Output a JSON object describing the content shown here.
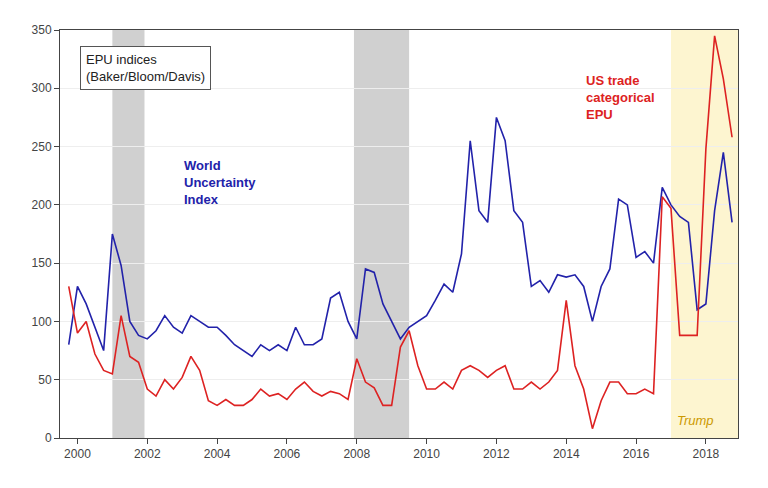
{
  "chart_data": {
    "type": "line",
    "x": [
      1999.75,
      2000.0,
      2000.25,
      2000.5,
      2000.75,
      2001.0,
      2001.25,
      2001.5,
      2001.75,
      2002.0,
      2002.25,
      2002.5,
      2002.75,
      2003.0,
      2003.25,
      2003.5,
      2003.75,
      2004.0,
      2004.25,
      2004.5,
      2004.75,
      2005.0,
      2005.25,
      2005.5,
      2005.75,
      2006.0,
      2006.25,
      2006.5,
      2006.75,
      2007.0,
      2007.25,
      2007.5,
      2007.75,
      2008.0,
      2008.25,
      2008.5,
      2008.75,
      2009.0,
      2009.25,
      2009.5,
      2009.75,
      2010.0,
      2010.25,
      2010.5,
      2010.75,
      2011.0,
      2011.25,
      2011.5,
      2011.75,
      2012.0,
      2012.25,
      2012.5,
      2012.75,
      2013.0,
      2013.25,
      2013.5,
      2013.75,
      2014.0,
      2014.25,
      2014.5,
      2014.75,
      2015.0,
      2015.25,
      2015.5,
      2015.75,
      2016.0,
      2016.25,
      2016.5,
      2016.75,
      2017.0,
      2017.25,
      2017.5,
      2017.75,
      2018.0,
      2018.25,
      2018.5,
      2018.75
    ],
    "series": [
      {
        "name": "World\nUncertainty\nIndex",
        "color": "#2222aa",
        "values": [
          80,
          130,
          115,
          95,
          75,
          175,
          148,
          100,
          88,
          85,
          92,
          105,
          95,
          90,
          105,
          100,
          95,
          95,
          88,
          80,
          75,
          70,
          80,
          75,
          80,
          75,
          95,
          80,
          80,
          85,
          120,
          125,
          100,
          85,
          145,
          142,
          115,
          100,
          85,
          95,
          100,
          105,
          118,
          132,
          125,
          158,
          255,
          195,
          185,
          275,
          255,
          195,
          185,
          130,
          135,
          125,
          140,
          138,
          140,
          130,
          100,
          130,
          145,
          205,
          200,
          155,
          160,
          150,
          215,
          200,
          190,
          185,
          110,
          115,
          195,
          245,
          185
        ]
      },
      {
        "name": "US trade\ncategorical\nEPU",
        "color": "#dd2222",
        "values": [
          130,
          90,
          100,
          72,
          58,
          55,
          105,
          70,
          65,
          42,
          36,
          50,
          42,
          52,
          70,
          58,
          32,
          28,
          33,
          28,
          28,
          33,
          42,
          36,
          38,
          33,
          42,
          48,
          40,
          36,
          40,
          38,
          33,
          68,
          48,
          43,
          28,
          28,
          78,
          92,
          62,
          42,
          42,
          48,
          42,
          58,
          62,
          58,
          52,
          58,
          62,
          42,
          42,
          48,
          42,
          48,
          58,
          118,
          62,
          42,
          8,
          32,
          48,
          48,
          38,
          38,
          42,
          38,
          207,
          197,
          88,
          88,
          88,
          248,
          345,
          308,
          258
        ]
      }
    ],
    "xlim": [
      1999.5,
      2018.92
    ],
    "xticks": [
      2000,
      2002,
      2004,
      2006,
      2008,
      2010,
      2012,
      2014,
      2016,
      2018
    ],
    "ylim": [
      0,
      350
    ],
    "yticks": [
      0,
      50,
      100,
      150,
      200,
      250,
      300,
      350
    ],
    "grid": "y",
    "annotations": [
      "EPU indices\n(Baker/Bloom/Davis)"
    ],
    "bands": [
      {
        "x": [
          2017.0,
          2018.92
        ],
        "color": "#fdf5d0",
        "label": "Trump"
      },
      {
        "x": [
          2001.0,
          2001.92
        ],
        "color": "#d0d0d0"
      },
      {
        "x": [
          2007.92,
          2009.5
        ],
        "color": "#d0d0d0"
      }
    ]
  }
}
